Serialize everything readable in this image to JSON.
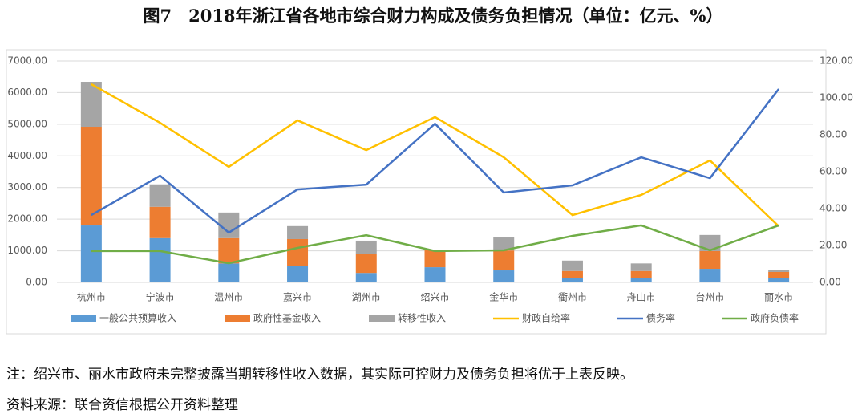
{
  "chart_data": {
    "type": "bar",
    "stacked": true,
    "title": "图7　2018年浙江省各地市综合财力构成及债务负担情况（单位：亿元、%）",
    "categories": [
      "杭州市",
      "宁波市",
      "温州市",
      "嘉兴市",
      "湖州市",
      "绍兴市",
      "金华市",
      "衢州市",
      "舟山市",
      "台州市",
      "丽水市"
    ],
    "ylim": [
      0,
      7000
    ],
    "yticks": [
      {
        "value": 0,
        "label": "0.00"
      },
      {
        "value": 1000,
        "label": "1000.00"
      },
      {
        "value": 2000,
        "label": "2000.00"
      },
      {
        "value": 3000,
        "label": "3000.00"
      },
      {
        "value": 4000,
        "label": "4000.00"
      },
      {
        "value": 5000,
        "label": "5000.00"
      },
      {
        "value": 6000,
        "label": "6000.00"
      },
      {
        "value": 7000,
        "label": "7000.00"
      }
    ],
    "y2lim": [
      0,
      120
    ],
    "y2ticks": [
      {
        "value": 0,
        "label": "0.00"
      },
      {
        "value": 20,
        "label": "20.00"
      },
      {
        "value": 40,
        "label": "40.00"
      },
      {
        "value": 60,
        "label": "60.00"
      },
      {
        "value": 80,
        "label": "80.00"
      },
      {
        "value": 100,
        "label": "100.00"
      },
      {
        "value": 120,
        "label": "120.00"
      }
    ],
    "grid": true,
    "series": [
      {
        "name": "一般公共预算收入",
        "type": "bar",
        "color": "#5b9bd5",
        "values": [
          1800,
          1400,
          600,
          530,
          300,
          480,
          380,
          150,
          150,
          430,
          150
        ]
      },
      {
        "name": "政府性基金收入",
        "type": "bar",
        "color": "#ed7d31",
        "values": [
          3120,
          990,
          800,
          840,
          610,
          540,
          630,
          210,
          210,
          560,
          180
        ]
      },
      {
        "name": "转移性收入",
        "type": "bar",
        "color": "#a5a5a5",
        "values": [
          1420,
          710,
          810,
          410,
          410,
          0,
          410,
          330,
          240,
          510,
          60
        ]
      },
      {
        "name": "财政自给率",
        "type": "line",
        "axis": "y2",
        "color": "#ffc000",
        "values": [
          107.4,
          86.5,
          62.6,
          87.8,
          71.7,
          89.6,
          67.8,
          36.5,
          47.4,
          66.1,
          30.4
        ]
      },
      {
        "name": "债务率",
        "type": "line",
        "axis": "y2",
        "color": "#4472c4",
        "values": [
          36.5,
          57.8,
          27,
          50.4,
          53,
          86,
          48.7,
          52.6,
          67.8,
          56.5,
          104.8
        ]
      },
      {
        "name": "政府负债率",
        "type": "line",
        "axis": "y2",
        "color": "#70ad47",
        "values": [
          17,
          17,
          10.4,
          18.7,
          25.6,
          17,
          17.4,
          25.2,
          30.9,
          17.4,
          30.9
        ]
      }
    ]
  },
  "notes": [
    "注：绍兴市、丽水市政府未完整披露当期转移性收入数据，其实际可控财力及债务负担将优于上表反映。",
    "资料来源：联合资信根据公开资料整理"
  ]
}
